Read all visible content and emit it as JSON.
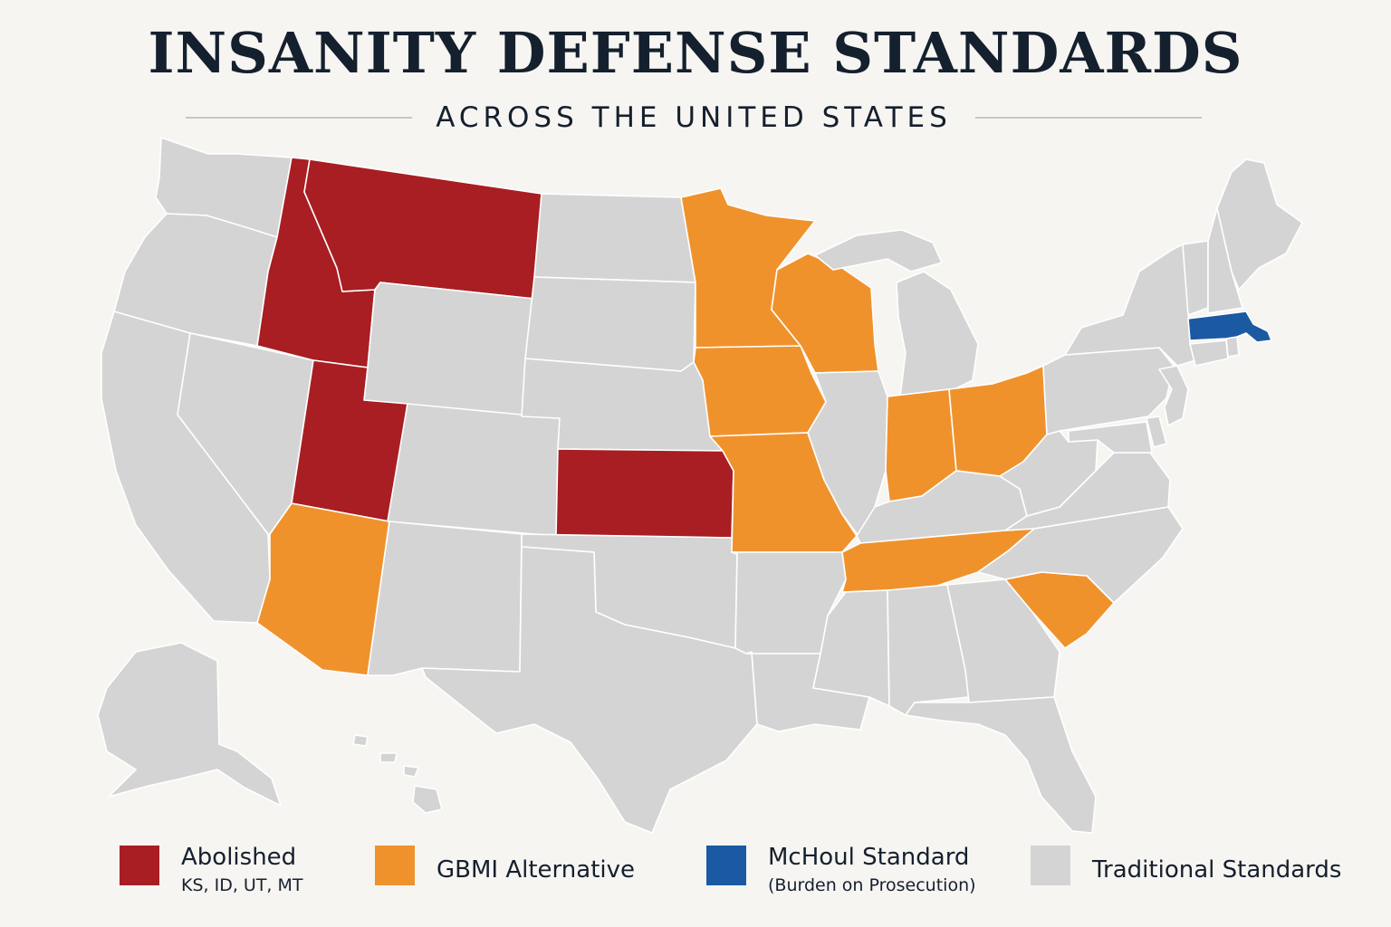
{
  "title": "INSANITY DEFENSE STANDARDS",
  "subtitle": "ACROSS THE UNITED STATES",
  "colors": {
    "abolished": "#a81e22",
    "gbmi": "#f0922c",
    "mchoul": "#1c59a3",
    "traditional": "#d4d4d4",
    "background": "#f7f5f2",
    "text": "#15202e"
  },
  "legend": [
    {
      "category": "abolished",
      "label": "Abolished",
      "sublabel": "KS, ID, UT, MT"
    },
    {
      "category": "gbmi",
      "label": "GBMI Alternative",
      "sublabel": ""
    },
    {
      "category": "mchoul",
      "label": "McHoul Standard",
      "sublabel": "(Burden on Prosecution)"
    },
    {
      "category": "traditional",
      "label": "Traditional Standards",
      "sublabel": ""
    }
  ],
  "states": {
    "WA": "traditional",
    "OR": "traditional",
    "CA": "traditional",
    "NV": "traditional",
    "ID": "abolished",
    "MT": "abolished",
    "WY": "traditional",
    "UT": "abolished",
    "AZ": "gbmi",
    "CO": "traditional",
    "NM": "traditional",
    "ND": "traditional",
    "SD": "traditional",
    "NE": "traditional",
    "KS": "abolished",
    "OK": "traditional",
    "TX": "traditional",
    "MN": "gbmi",
    "IA": "gbmi",
    "MO": "gbmi",
    "AR": "traditional",
    "LA": "traditional",
    "WI": "gbmi",
    "IL": "traditional",
    "MI": "traditional",
    "IN": "gbmi",
    "OH": "gbmi",
    "KY": "traditional",
    "TN": "gbmi",
    "MS": "traditional",
    "AL": "traditional",
    "GA": "traditional",
    "FL": "traditional",
    "SC": "gbmi",
    "NC": "traditional",
    "VA": "traditional",
    "WV": "traditional",
    "MD": "traditional",
    "DE": "traditional",
    "PA": "traditional",
    "NJ": "traditional",
    "NY": "traditional",
    "CT": "traditional",
    "RI": "traditional",
    "MA": "mchoul",
    "VT": "traditional",
    "NH": "traditional",
    "ME": "traditional",
    "AK": "traditional",
    "HI": "traditional"
  }
}
